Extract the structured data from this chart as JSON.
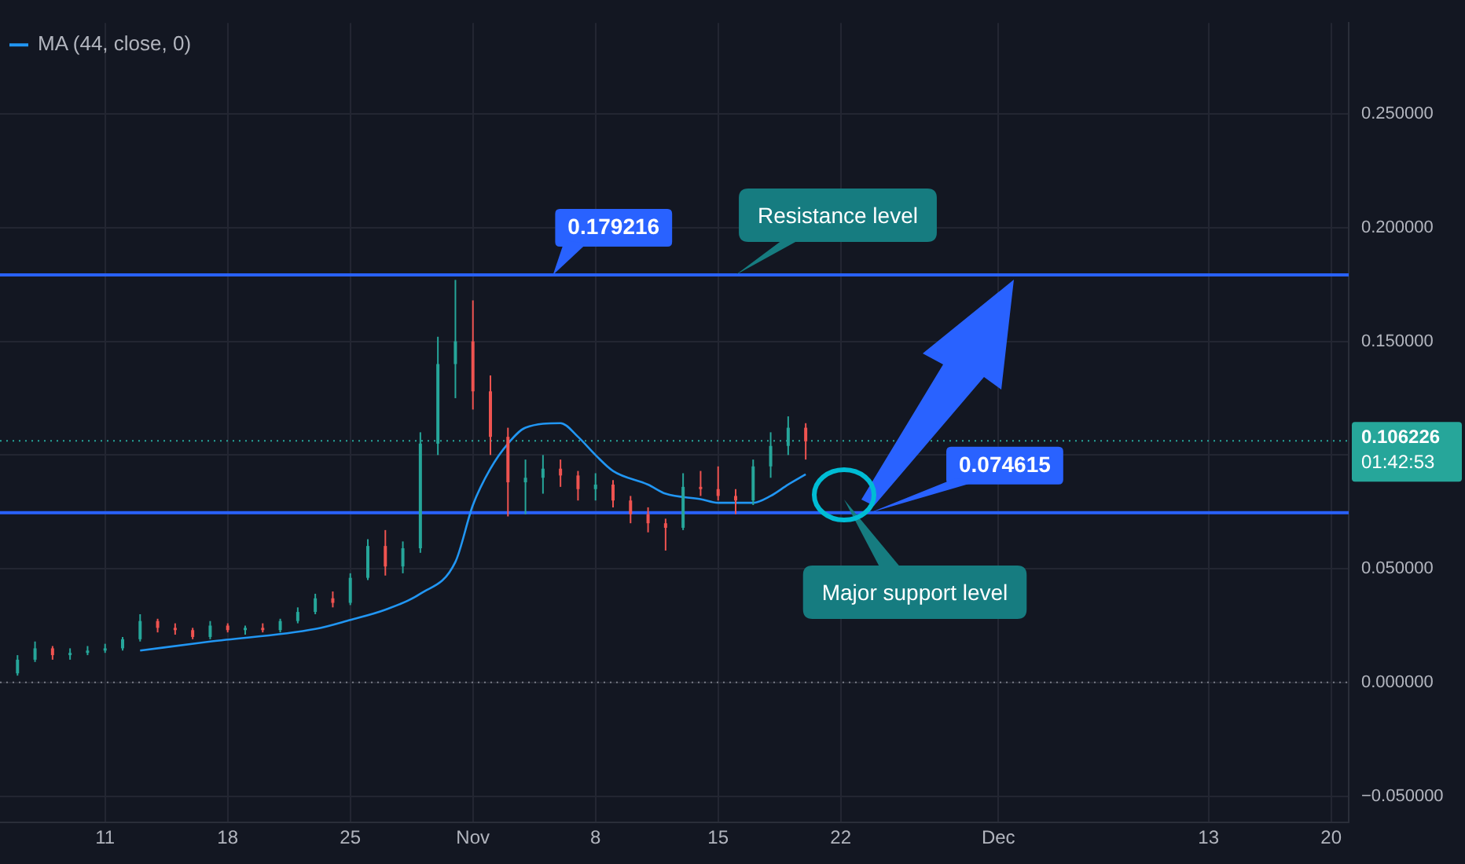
{
  "chart_data": {
    "type": "candlestick",
    "x": [
      "--10-06",
      "--10-07",
      "--10-08",
      "--10-09",
      "--10-10",
      "--10-11",
      "--10-12",
      "--10-13",
      "--10-14",
      "--10-15",
      "--10-16",
      "--10-17",
      "--10-18",
      "--10-19",
      "--10-20",
      "--10-21",
      "--10-22",
      "--10-23",
      "--10-24",
      "--10-25",
      "--10-26",
      "--10-27",
      "--10-28",
      "--10-29",
      "--10-30",
      "--10-31",
      "--11-01",
      "--11-02",
      "--11-03",
      "--11-04",
      "--11-05",
      "--11-06",
      "--11-07",
      "--11-08",
      "--11-09",
      "--11-10",
      "--11-11",
      "--11-12",
      "--11-13",
      "--11-14",
      "--11-15",
      "--11-16",
      "--11-17",
      "--11-18",
      "--11-19",
      "--11-20"
    ],
    "ohlc": [
      [
        0.004,
        0.012,
        0.003,
        0.01
      ],
      [
        0.01,
        0.018,
        0.009,
        0.015
      ],
      [
        0.015,
        0.016,
        0.01,
        0.012
      ],
      [
        0.012,
        0.015,
        0.01,
        0.013
      ],
      [
        0.013,
        0.016,
        0.012,
        0.014
      ],
      [
        0.014,
        0.017,
        0.013,
        0.015
      ],
      [
        0.015,
        0.02,
        0.014,
        0.019
      ],
      [
        0.019,
        0.03,
        0.018,
        0.027
      ],
      [
        0.027,
        0.028,
        0.022,
        0.024
      ],
      [
        0.024,
        0.026,
        0.021,
        0.023
      ],
      [
        0.023,
        0.024,
        0.019,
        0.02
      ],
      [
        0.02,
        0.027,
        0.019,
        0.025
      ],
      [
        0.025,
        0.026,
        0.022,
        0.023
      ],
      [
        0.023,
        0.025,
        0.021,
        0.024
      ],
      [
        0.024,
        0.026,
        0.022,
        0.023
      ],
      [
        0.023,
        0.028,
        0.022,
        0.027
      ],
      [
        0.027,
        0.033,
        0.026,
        0.031
      ],
      [
        0.031,
        0.039,
        0.03,
        0.037
      ],
      [
        0.037,
        0.04,
        0.033,
        0.035
      ],
      [
        0.035,
        0.048,
        0.034,
        0.046
      ],
      [
        0.046,
        0.063,
        0.045,
        0.06
      ],
      [
        0.06,
        0.067,
        0.047,
        0.051
      ],
      [
        0.051,
        0.062,
        0.048,
        0.059
      ],
      [
        0.059,
        0.11,
        0.057,
        0.105
      ],
      [
        0.105,
        0.152,
        0.1,
        0.14
      ],
      [
        0.14,
        0.177,
        0.125,
        0.15
      ],
      [
        0.15,
        0.168,
        0.12,
        0.128
      ],
      [
        0.128,
        0.135,
        0.1,
        0.108
      ],
      [
        0.108,
        0.112,
        0.073,
        0.088
      ],
      [
        0.088,
        0.098,
        0.074,
        0.09
      ],
      [
        0.09,
        0.1,
        0.083,
        0.094
      ],
      [
        0.094,
        0.098,
        0.086,
        0.091
      ],
      [
        0.091,
        0.093,
        0.08,
        0.085
      ],
      [
        0.085,
        0.092,
        0.08,
        0.087
      ],
      [
        0.087,
        0.089,
        0.077,
        0.08
      ],
      [
        0.08,
        0.082,
        0.07,
        0.074
      ],
      [
        0.074,
        0.077,
        0.066,
        0.07
      ],
      [
        0.07,
        0.072,
        0.058,
        0.068
      ],
      [
        0.068,
        0.092,
        0.067,
        0.086
      ],
      [
        0.086,
        0.093,
        0.082,
        0.085
      ],
      [
        0.085,
        0.095,
        0.08,
        0.082
      ],
      [
        0.082,
        0.085,
        0.074,
        0.08
      ],
      [
        0.08,
        0.098,
        0.078,
        0.095
      ],
      [
        0.095,
        0.11,
        0.09,
        0.104
      ],
      [
        0.104,
        0.117,
        0.1,
        0.112
      ],
      [
        0.112,
        0.114,
        0.098,
        0.106
      ]
    ],
    "series": [
      {
        "name": "MA (44, close, 0)",
        "type": "line",
        "color": "#2196f3",
        "x": [
          "--10-13",
          "--10-17",
          "--10-23",
          "--10-25",
          "--10-27",
          "--10-29",
          "--10-31",
          "--11-01",
          "--11-02",
          "--11-03",
          "--11-04",
          "--11-06",
          "--11-07",
          "--11-08",
          "--11-09",
          "--11-11",
          "--11-12",
          "--11-14",
          "--11-15",
          "--11-17",
          "--11-18",
          "--11-19",
          "--11-20"
        ],
        "values": [
          0.014,
          0.018,
          0.0235,
          0.0275,
          0.032,
          0.039,
          0.053,
          0.078,
          0.094,
          0.105,
          0.112,
          0.114,
          0.108,
          0.1,
          0.093,
          0.087,
          0.083,
          0.0806,
          0.079,
          0.079,
          0.082,
          0.087,
          0.0915
        ]
      }
    ],
    "xlim": [
      "--10-05",
      "--12-21"
    ],
    "xticks": [
      {
        "value": "--10-11",
        "label": "11"
      },
      {
        "value": "--10-18",
        "label": "18"
      },
      {
        "value": "--10-25",
        "label": "25"
      },
      {
        "value": "--11-01",
        "label": "Nov"
      },
      {
        "value": "--11-08",
        "label": "8"
      },
      {
        "value": "--11-15",
        "label": "15"
      },
      {
        "value": "--11-22",
        "label": "22"
      },
      {
        "value": "--12-01",
        "label": "Dec"
      },
      {
        "value": "--12-13",
        "label": "13"
      },
      {
        "value": "--12-20",
        "label": "20"
      }
    ],
    "ylim": [
      -0.0616,
      0.29
    ],
    "yticks": [
      {
        "value": -0.05,
        "label": "−0.050000"
      },
      {
        "value": 0,
        "label": "0.000000"
      },
      {
        "value": 0.05,
        "label": "0.050000"
      },
      {
        "value": 0.1,
        "label": null
      },
      {
        "value": 0.15,
        "label": "0.150000"
      },
      {
        "value": 0.2,
        "label": "0.200000"
      },
      {
        "value": 0.25,
        "label": "0.250000"
      }
    ],
    "grid": true,
    "legend": "top left",
    "ref_lines": [
      {
        "axis": "y",
        "value": 0.179216,
        "label": "0.179216",
        "color": "#2962ff",
        "line_style": "solid"
      },
      {
        "axis": "y",
        "value": 0.074615,
        "label": "0.074615",
        "color": "#2962ff",
        "line_style": "solid"
      },
      {
        "axis": "y",
        "value": 0.106226,
        "label": "0.106226",
        "color": "#26a69a",
        "line_style": "dotted"
      },
      {
        "axis": "y",
        "value": 0,
        "color": "#787b86",
        "line_style": "dotted"
      }
    ],
    "annotations": [
      {
        "text": "Resistance level",
        "x": "--11-16",
        "y": 0.179216
      },
      "Major support level",
      "01:42:53"
    ]
  }
}
